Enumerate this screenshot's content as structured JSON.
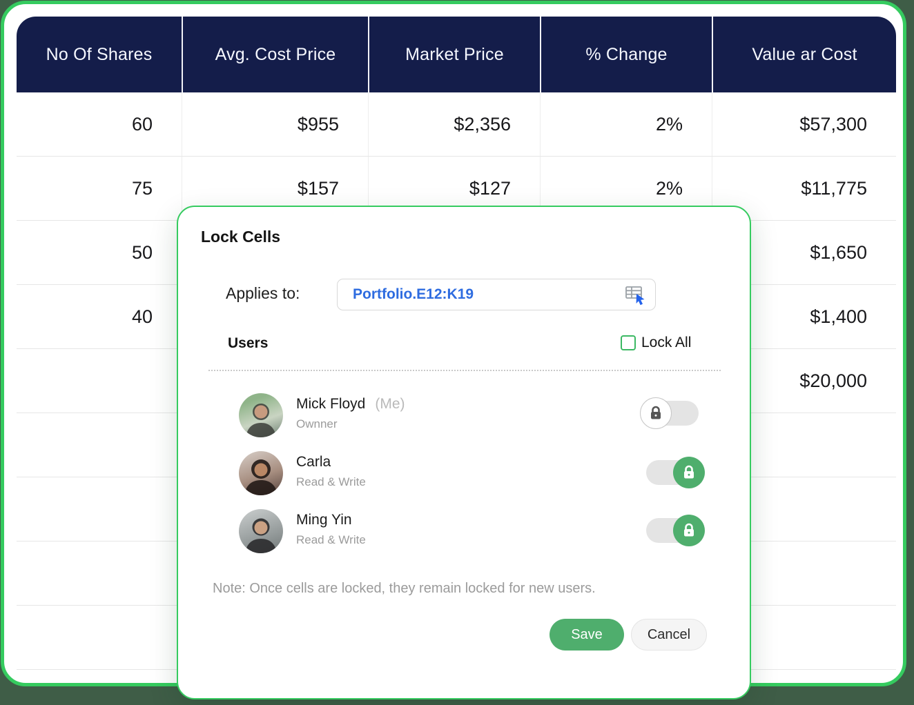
{
  "colors": {
    "accent_green": "#35cb5f",
    "header_navy": "#141d4a",
    "toggle_on_green": "#4fae6d",
    "range_text_blue": "#2e6ce0",
    "page_background": "#3f5d47"
  },
  "table": {
    "headers": [
      "No Of Shares",
      "Avg. Cost Price",
      "Market Price",
      "% Change",
      "Value ar Cost"
    ],
    "rows": [
      [
        "60",
        "$955",
        "$2,356",
        "2%",
        "$57,300"
      ],
      [
        "75",
        "$157",
        "$127",
        "2%",
        "$11,775"
      ],
      [
        "50",
        "",
        "",
        "",
        "$1,650"
      ],
      [
        "40",
        "",
        "",
        "",
        "$1,400"
      ],
      [
        "",
        "",
        "",
        "",
        "$20,000"
      ],
      [
        "",
        "",
        "",
        "",
        ""
      ],
      [
        "",
        "",
        "",
        "",
        ""
      ],
      [
        "",
        "",
        "",
        "",
        ""
      ],
      [
        "",
        "",
        "",
        "",
        ""
      ],
      [
        "",
        "",
        "",
        "",
        ""
      ]
    ]
  },
  "modal": {
    "title": "Lock Cells",
    "applies_to_label": "Applies to:",
    "range_value": "Portfolio.E12:K19",
    "range_picker_icon": "table-range-picker-icon",
    "users_label": "Users",
    "lock_all_label": "Lock All",
    "lock_all_checked": false,
    "users": [
      {
        "name": "Mick Floyd",
        "suffix": "(Me)",
        "role": "Ownner",
        "locked": false
      },
      {
        "name": "Carla",
        "suffix": "",
        "role": "Read & Write",
        "locked": true
      },
      {
        "name": "Ming Yin",
        "suffix": "",
        "role": "Read & Write",
        "locked": true
      }
    ],
    "note": "Note: Once cells are locked, they remain locked for new users.",
    "save_label": "Save",
    "cancel_label": "Cancel"
  }
}
